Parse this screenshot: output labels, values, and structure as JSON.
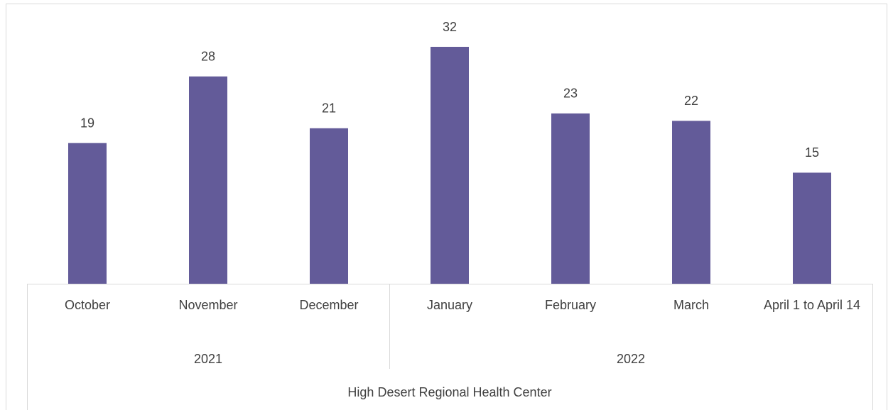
{
  "chart_data": {
    "type": "bar",
    "categories": [
      "October",
      "November",
      "December",
      "January",
      "February",
      "March",
      "April 1 to April 14"
    ],
    "values": [
      19,
      28,
      21,
      32,
      23,
      22,
      15
    ],
    "color": "#635b99",
    "groups": [
      {
        "label": "2021",
        "count": 3
      },
      {
        "label": "2022",
        "count": 4
      }
    ],
    "axis_title": "High Desert Regional Health Center"
  }
}
